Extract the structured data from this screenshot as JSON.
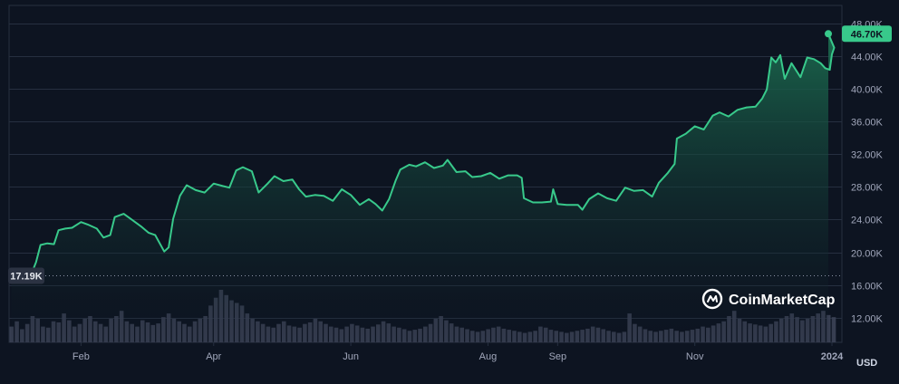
{
  "chart_data": {
    "type": "area",
    "currency": "USD",
    "y_ticks": [
      12000,
      16000,
      20000,
      24000,
      28000,
      32000,
      36000,
      40000,
      44000,
      48000
    ],
    "y_tick_labels": [
      "12.00K",
      "16.00K",
      "20.00K",
      "24.00K",
      "28.00K",
      "32.00K",
      "36.00K",
      "40.00K",
      "44.00K",
      "48.00K"
    ],
    "ylim": [
      9000,
      49500
    ],
    "x_labels": [
      {
        "label": "Feb",
        "date": "2023-02-01"
      },
      {
        "label": "Apr",
        "date": "2023-04-01"
      },
      {
        "label": "Jun",
        "date": "2023-06-01"
      },
      {
        "label": "Aug",
        "date": "2023-08-01"
      },
      {
        "label": "Sep",
        "date": "2023-09-01"
      },
      {
        "label": "Nov",
        "date": "2023-11-01"
      },
      {
        "label": "2024",
        "date": "2024-01-01"
      }
    ],
    "xlim": [
      "2022-12-31",
      "2024-01-03"
    ],
    "current_price": 46700,
    "current_price_label": "46.70K",
    "reference_price": 17190,
    "reference_price_label": "17.19K",
    "price_series": [
      [
        "2023-01-01",
        16600
      ],
      [
        "2023-01-04",
        16800
      ],
      [
        "2023-01-08",
        17100
      ],
      [
        "2023-01-10",
        17400
      ],
      [
        "2023-01-12",
        18800
      ],
      [
        "2023-01-14",
        20900
      ],
      [
        "2023-01-17",
        21100
      ],
      [
        "2023-01-20",
        21000
      ],
      [
        "2023-01-22",
        22700
      ],
      [
        "2023-01-25",
        22900
      ],
      [
        "2023-01-28",
        23000
      ],
      [
        "2023-02-01",
        23700
      ],
      [
        "2023-02-04",
        23400
      ],
      [
        "2023-02-08",
        22900
      ],
      [
        "2023-02-11",
        21800
      ],
      [
        "2023-02-14",
        22100
      ],
      [
        "2023-02-16",
        24300
      ],
      [
        "2023-02-20",
        24700
      ],
      [
        "2023-02-24",
        23900
      ],
      [
        "2023-02-28",
        23100
      ],
      [
        "2023-03-03",
        22400
      ],
      [
        "2023-03-06",
        22100
      ],
      [
        "2023-03-10",
        20100
      ],
      [
        "2023-03-12",
        20600
      ],
      [
        "2023-03-14",
        24100
      ],
      [
        "2023-03-17",
        26900
      ],
      [
        "2023-03-20",
        28200
      ],
      [
        "2023-03-24",
        27600
      ],
      [
        "2023-03-28",
        27300
      ],
      [
        "2023-04-01",
        28400
      ],
      [
        "2023-04-05",
        28100
      ],
      [
        "2023-04-08",
        27900
      ],
      [
        "2023-04-11",
        30000
      ],
      [
        "2023-04-14",
        30400
      ],
      [
        "2023-04-18",
        29900
      ],
      [
        "2023-04-21",
        27300
      ],
      [
        "2023-04-25",
        28400
      ],
      [
        "2023-04-28",
        29300
      ],
      [
        "2023-05-02",
        28700
      ],
      [
        "2023-05-06",
        28900
      ],
      [
        "2023-05-09",
        27700
      ],
      [
        "2023-05-12",
        26800
      ],
      [
        "2023-05-16",
        27000
      ],
      [
        "2023-05-20",
        26900
      ],
      [
        "2023-05-24",
        26300
      ],
      [
        "2023-05-28",
        27700
      ],
      [
        "2023-06-01",
        27000
      ],
      [
        "2023-06-05",
        25800
      ],
      [
        "2023-06-09",
        26500
      ],
      [
        "2023-06-12",
        25900
      ],
      [
        "2023-06-15",
        25100
      ],
      [
        "2023-06-18",
        26500
      ],
      [
        "2023-06-21",
        28800
      ],
      [
        "2023-06-23",
        30100
      ],
      [
        "2023-06-27",
        30700
      ],
      [
        "2023-06-30",
        30500
      ],
      [
        "2023-07-04",
        31000
      ],
      [
        "2023-07-08",
        30300
      ],
      [
        "2023-07-12",
        30600
      ],
      [
        "2023-07-14",
        31300
      ],
      [
        "2023-07-18",
        29800
      ],
      [
        "2023-07-22",
        29900
      ],
      [
        "2023-07-25",
        29200
      ],
      [
        "2023-07-29",
        29300
      ],
      [
        "2023-08-02",
        29700
      ],
      [
        "2023-08-06",
        29000
      ],
      [
        "2023-08-10",
        29400
      ],
      [
        "2023-08-14",
        29400
      ],
      [
        "2023-08-16",
        29100
      ],
      [
        "2023-08-17",
        26600
      ],
      [
        "2023-08-21",
        26100
      ],
      [
        "2023-08-25",
        26100
      ],
      [
        "2023-08-29",
        26200
      ],
      [
        "2023-08-30",
        27700
      ],
      [
        "2023-09-01",
        25900
      ],
      [
        "2023-09-05",
        25800
      ],
      [
        "2023-09-10",
        25800
      ],
      [
        "2023-09-12",
        25200
      ],
      [
        "2023-09-15",
        26500
      ],
      [
        "2023-09-19",
        27200
      ],
      [
        "2023-09-23",
        26600
      ],
      [
        "2023-09-27",
        26300
      ],
      [
        "2023-10-01",
        27900
      ],
      [
        "2023-10-05",
        27500
      ],
      [
        "2023-10-09",
        27600
      ],
      [
        "2023-10-13",
        26800
      ],
      [
        "2023-10-16",
        28500
      ],
      [
        "2023-10-20",
        29700
      ],
      [
        "2023-10-23",
        30800
      ],
      [
        "2023-10-24",
        33900
      ],
      [
        "2023-10-28",
        34500
      ],
      [
        "2023-11-01",
        35400
      ],
      [
        "2023-11-05",
        35000
      ],
      [
        "2023-11-09",
        36700
      ],
      [
        "2023-11-12",
        37100
      ],
      [
        "2023-11-16",
        36600
      ],
      [
        "2023-11-20",
        37400
      ],
      [
        "2023-11-24",
        37700
      ],
      [
        "2023-11-28",
        37800
      ],
      [
        "2023-12-01",
        38800
      ],
      [
        "2023-12-03",
        39900
      ],
      [
        "2023-12-05",
        43800
      ],
      [
        "2023-12-07",
        43200
      ],
      [
        "2023-12-09",
        44100
      ],
      [
        "2023-12-11",
        41200
      ],
      [
        "2023-12-14",
        43100
      ],
      [
        "2023-12-18",
        41400
      ],
      [
        "2023-12-21",
        43800
      ],
      [
        "2023-12-24",
        43600
      ],
      [
        "2023-12-27",
        43100
      ],
      [
        "2023-12-29",
        42500
      ],
      [
        "2023-12-31",
        42300
      ],
      [
        "2024-01-01",
        44200
      ],
      [
        "2024-01-02",
        45000
      ],
      [
        "2024-01-02",
        46700
      ]
    ],
    "volume_relative": [
      0.3,
      0.4,
      0.25,
      0.35,
      0.5,
      0.45,
      0.3,
      0.28,
      0.4,
      0.38,
      0.55,
      0.42,
      0.3,
      0.35,
      0.45,
      0.5,
      0.4,
      0.35,
      0.3,
      0.45,
      0.5,
      0.6,
      0.4,
      0.35,
      0.3,
      0.42,
      0.38,
      0.33,
      0.36,
      0.48,
      0.55,
      0.45,
      0.4,
      0.35,
      0.3,
      0.4,
      0.45,
      0.5,
      0.7,
      0.85,
      1.0,
      0.9,
      0.8,
      0.75,
      0.7,
      0.55,
      0.45,
      0.4,
      0.35,
      0.3,
      0.28,
      0.35,
      0.4,
      0.32,
      0.3,
      0.28,
      0.35,
      0.38,
      0.45,
      0.4,
      0.35,
      0.3,
      0.28,
      0.25,
      0.3,
      0.35,
      0.32,
      0.28,
      0.26,
      0.3,
      0.34,
      0.4,
      0.36,
      0.3,
      0.28,
      0.25,
      0.22,
      0.24,
      0.26,
      0.3,
      0.35,
      0.45,
      0.5,
      0.42,
      0.36,
      0.3,
      0.28,
      0.25,
      0.22,
      0.2,
      0.22,
      0.25,
      0.28,
      0.3,
      0.26,
      0.24,
      0.22,
      0.2,
      0.18,
      0.2,
      0.22,
      0.3,
      0.28,
      0.24,
      0.22,
      0.2,
      0.18,
      0.2,
      0.22,
      0.24,
      0.26,
      0.3,
      0.28,
      0.25,
      0.22,
      0.2,
      0.18,
      0.2,
      0.55,
      0.35,
      0.3,
      0.25,
      0.22,
      0.2,
      0.22,
      0.24,
      0.26,
      0.22,
      0.2,
      0.22,
      0.24,
      0.26,
      0.3,
      0.28,
      0.32,
      0.36,
      0.4,
      0.5,
      0.6,
      0.45,
      0.4,
      0.36,
      0.34,
      0.32,
      0.3,
      0.35,
      0.4,
      0.45,
      0.5,
      0.55,
      0.48,
      0.42,
      0.45,
      0.5,
      0.55,
      0.6,
      0.52,
      0.48
    ]
  },
  "brand": {
    "name": "CoinMarketCap",
    "logo_icon": "coinmarketcap-logo-icon"
  },
  "colors": {
    "background": "#0d1421",
    "line": "#38c98b",
    "area_top": "#1b6b4f",
    "grid": "#262f40",
    "badge_bg": "#38c98b",
    "badge_text": "#0d1421",
    "reference_badge_bg": "#2b3242",
    "reference_badge_text": "#e5e8ee",
    "volume": "#3c4356"
  }
}
